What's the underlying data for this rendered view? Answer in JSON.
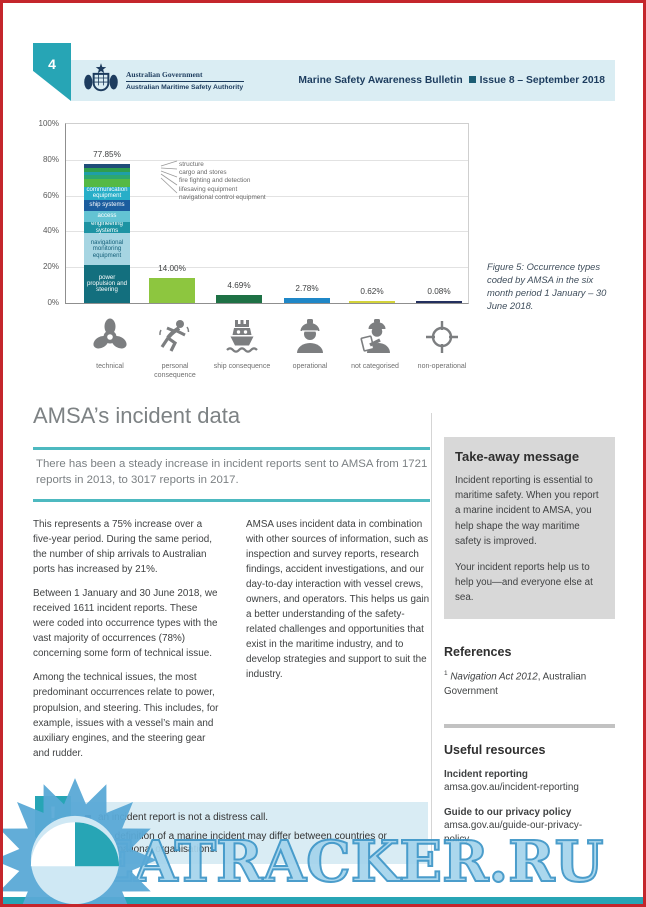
{
  "page": {
    "number": "4"
  },
  "header": {
    "gov_line1": "Australian Government",
    "gov_line2": "Australian Maritime Safety Authority",
    "bulletin_title": "Marine Safety Awareness Bulletin",
    "bulletin_issue": "Issue 8 – September 2018"
  },
  "chart_data": {
    "type": "bar",
    "title": "",
    "categories": [
      "technical",
      "personal consequence",
      "ship consequence",
      "operational",
      "not categorised",
      "non-operational"
    ],
    "values": [
      77.85,
      14.0,
      4.69,
      2.78,
      0.62,
      0.08
    ],
    "value_labels": [
      "77.85%",
      "14.00%",
      "4.69%",
      "2.78%",
      "0.62%",
      "0.08%"
    ],
    "bar_colors": [
      "stacked",
      "#8dc63f",
      "#1e7145",
      "#1f87c7",
      "#d3d33a",
      "#232f5e"
    ],
    "ylim": [
      0,
      100
    ],
    "yticks": [
      "100%",
      "80%",
      "60%",
      "40%",
      "20%",
      "0%"
    ],
    "grid": true,
    "legend": "none",
    "stacked_segments": [
      {
        "name": "power propulsion and steering",
        "value": 21.0,
        "color": "#136f7e",
        "label": true,
        "text": "#ffffff"
      },
      {
        "name": "navigational monitoring equipment",
        "value": 18.0,
        "color": "#a6d5e2",
        "label": true,
        "text": "#15607a"
      },
      {
        "name": "engineering systems",
        "value": 6.0,
        "color": "#1d93a3",
        "label": true,
        "text": "#ffffff"
      },
      {
        "name": "access",
        "value": 6.5,
        "color": "#63c3d3",
        "label": true,
        "text": "#ffffff"
      },
      {
        "name": "ship systems",
        "value": 6.3,
        "color": "#1b5d9e",
        "label": true,
        "text": "#ffffff"
      },
      {
        "name": "communication equipment",
        "value": 7.0,
        "color": "#27aec8",
        "label": true,
        "text": "#ffffff"
      },
      {
        "name": "navigational control equipment",
        "value": 4.3,
        "color": "#55b945",
        "label": false
      },
      {
        "name": "lifesaving equipment",
        "value": 2.2,
        "color": "#2da770",
        "label": false
      },
      {
        "name": "fire fighting and detection",
        "value": 2.1,
        "color": "#1f9fa8",
        "label": false
      },
      {
        "name": "cargo and stores",
        "value": 2.0,
        "color": "#2f9e4f",
        "label": false
      },
      {
        "name": "structure",
        "value": 2.45,
        "color": "#1f4e79",
        "label": false
      }
    ],
    "callout_labels": [
      "structure",
      "cargo and stores",
      "fire fighting and detection",
      "lifesaving equipment",
      "navigational control equipment"
    ]
  },
  "figure_caption": "Figure 5: Occurrence types coded by AMSA in the six month period 1 January – 30 June 2018.",
  "main": {
    "title": "AMSA’s incident data",
    "lead": "There has been a steady increase in incident reports sent to AMSA from 1721 reports in 2013, to 3017 reports in 2017.",
    "col1": [
      "This represents a 75% increase over a five-year period. During the same period, the number of ship arrivals to Australian ports has increased by 21%.",
      "Between 1 January and 30 June 2018, we received 1611 incident reports. These were coded into occurrence types with the vast majority of occurrences (78%) concerning some form of technical issue.",
      "Among the technical issues, the most predominant occurrences relate to power, propulsion, and steering. This includes, for example, issues with a vessel’s main and auxiliary engines, and the steering gear and rudder."
    ],
    "col2": [
      "AMSA uses incident data in combination with other sources of information, such as inspection and survey reports, research findings, accident investigations, and our day-to-day interaction with vessel crews, owners, and operators. This helps us gain a better understanding of the safety-related challenges and opportunities that exist in the maritime industry, and to develop strategies and support to suit the industry."
    ]
  },
  "info_box": {
    "exclamation": "!",
    "bullets": [
      "an incident report is not a distress call.",
      "the definition of a marine incident may differ between countries or international organisations."
    ]
  },
  "sidebar": {
    "takeaway": {
      "title": "Take-away message",
      "p1": "Incident reporting is essential to maritime safety. When you report a marine incident to AMSA, you help shape the way maritime safety is improved.",
      "p2": "Your incident reports help us to help you—and everyone else at sea."
    },
    "references": {
      "title": "References",
      "sup": "1",
      "italic": "Navigation Act 2012",
      "rest": ", Australian Government"
    },
    "resources": {
      "title": "Useful resources",
      "items": [
        {
          "label": "Incident reporting",
          "link": "amsa.gov.au/incident-reporting"
        },
        {
          "label": "Guide to our privacy policy",
          "link": "amsa.gov.au/guide-our-privacy-policy."
        }
      ]
    }
  },
  "watermark": {
    "text": "SEATRACKER.RU"
  },
  "colors": {
    "accent_teal": "#27a5b5",
    "header_band": "#daedf3",
    "navy_text": "#1c3c5e",
    "frame_red": "#c4262c",
    "info_bg": "#d9ecf4",
    "takeaway_bg": "#d8d8d8",
    "watermark_blue": "#a5d4ec"
  }
}
